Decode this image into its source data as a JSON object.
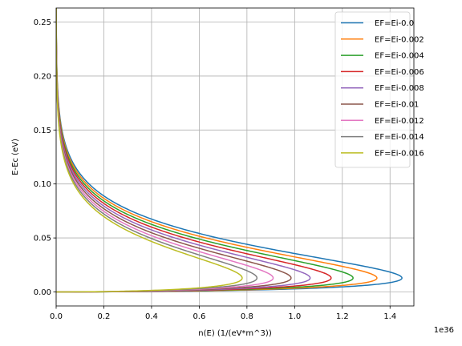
{
  "chart_data": {
    "type": "line",
    "title": "",
    "xlabel": "n(E) (1/(eV*m^3))",
    "ylabel": "E-Ec (eV)",
    "x_scale_label": "1e36",
    "x_scale": 1e+36,
    "xlim": [
      0,
      1.5
    ],
    "ylim": [
      -0.013,
      0.263
    ],
    "xticks": [
      0.0,
      0.2,
      0.4,
      0.6,
      0.8,
      1.0,
      1.2,
      1.4
    ],
    "yticks": [
      0.0,
      0.05,
      0.1,
      0.15,
      0.2,
      0.25
    ],
    "xtick_labels": [
      "0.0",
      "0.2",
      "0.4",
      "0.6",
      "0.8",
      "1.0",
      "1.2",
      "1.4"
    ],
    "ytick_labels": [
      "0.00",
      "0.05",
      "0.10",
      "0.15",
      "0.20",
      "0.25"
    ],
    "grid": true,
    "legend_position": "top-right",
    "series": [
      {
        "name": "EF=Ei-0.0",
        "color": "#1f77b4",
        "peak": 1.45
      },
      {
        "name": "EF=Ei-0.002",
        "color": "#ff7f0e",
        "peak": 1.345
      },
      {
        "name": "EF=Ei-0.004",
        "color": "#2ca02c",
        "peak": 1.245
      },
      {
        "name": "EF=Ei-0.006",
        "color": "#d62728",
        "peak": 1.153
      },
      {
        "name": "EF=Ei-0.008",
        "color": "#9467bd",
        "peak": 1.065
      },
      {
        "name": "EF=Ei-0.01",
        "color": "#8c564b",
        "peak": 0.985
      },
      {
        "name": "EF=Ei-0.012",
        "color": "#e377c2",
        "peak": 0.91
      },
      {
        "name": "EF=Ei-0.014",
        "color": "#7f7f7f",
        "peak": 0.842
      },
      {
        "name": "EF=Ei-0.016",
        "color": "#bcbd22",
        "peak": 0.78
      }
    ],
    "peak_energy": 0.0129,
    "e_max": 0.263,
    "curve_shape": "n(E) = peak * sqrt(E/Epk) * exp(-(E-Epk)/(2*Epk))"
  }
}
